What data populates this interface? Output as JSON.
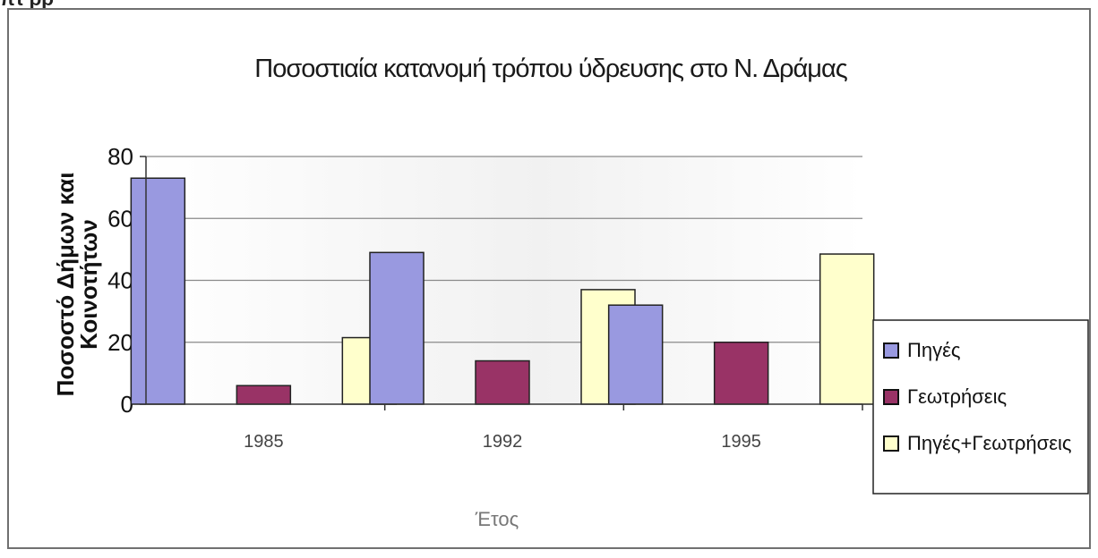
{
  "chart_data": {
    "type": "bar",
    "title": "Ποσοστιαία κατανομή τρόπου ύδρευσης στο Ν. Δράμας",
    "xlabel": "Έτος",
    "ylabel_line1": "Ποσοστό Δήμων και",
    "ylabel_line2": "Κοινοτήτων",
    "categories": [
      "1985",
      "1992",
      "1995"
    ],
    "ylim": [
      0,
      80
    ],
    "yticks": [
      "0",
      "20",
      "40",
      "60",
      "80"
    ],
    "grid": true,
    "legend_position": "right",
    "series": [
      {
        "name": "Πηγές",
        "values": [
          73,
          49,
          32
        ],
        "color": "#9999e0"
      },
      {
        "name": "Γεωτρήσεις",
        "values": [
          6,
          14,
          20
        ],
        "color": "#993366"
      },
      {
        "name": "Πηγές+Γεωτρήσεις",
        "values": [
          21.5,
          37,
          48.5
        ],
        "color": "#ffffcc"
      }
    ],
    "plot_background": "#c0c0c0"
  },
  "header_fragment": "πτ ρρ "
}
